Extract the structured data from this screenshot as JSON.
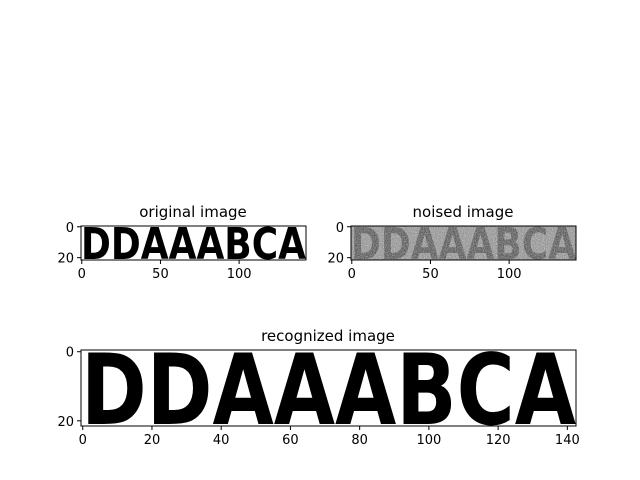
{
  "chart_data": [
    {
      "type": "heatmap",
      "title": "original image",
      "content": "DDAAABCA",
      "colormap": "binary",
      "image_size": [
        143,
        22
      ],
      "xticks": [
        0,
        50,
        100
      ],
      "yticks": [
        0,
        20
      ],
      "xlim": [
        -0.5,
        142.5
      ],
      "ylim": [
        21.5,
        -0.5
      ]
    },
    {
      "type": "heatmap",
      "title": "noised image",
      "content": "DDAAABCA",
      "colormap": "gray",
      "image_size": [
        143,
        22
      ],
      "xticks": [
        0,
        50,
        100
      ],
      "yticks": [
        0,
        20
      ],
      "xlim": [
        -0.5,
        142.5
      ],
      "ylim": [
        21.5,
        -0.5
      ]
    },
    {
      "type": "heatmap",
      "title": "recognized image",
      "content": "DDAAABCA",
      "colormap": "binary",
      "image_size": [
        143,
        22
      ],
      "xticks": [
        0,
        20,
        40,
        60,
        80,
        100,
        120,
        140
      ],
      "yticks": [
        0,
        20
      ],
      "xlim": [
        -0.5,
        142.5
      ],
      "ylim": [
        21.5,
        -0.5
      ]
    }
  ]
}
